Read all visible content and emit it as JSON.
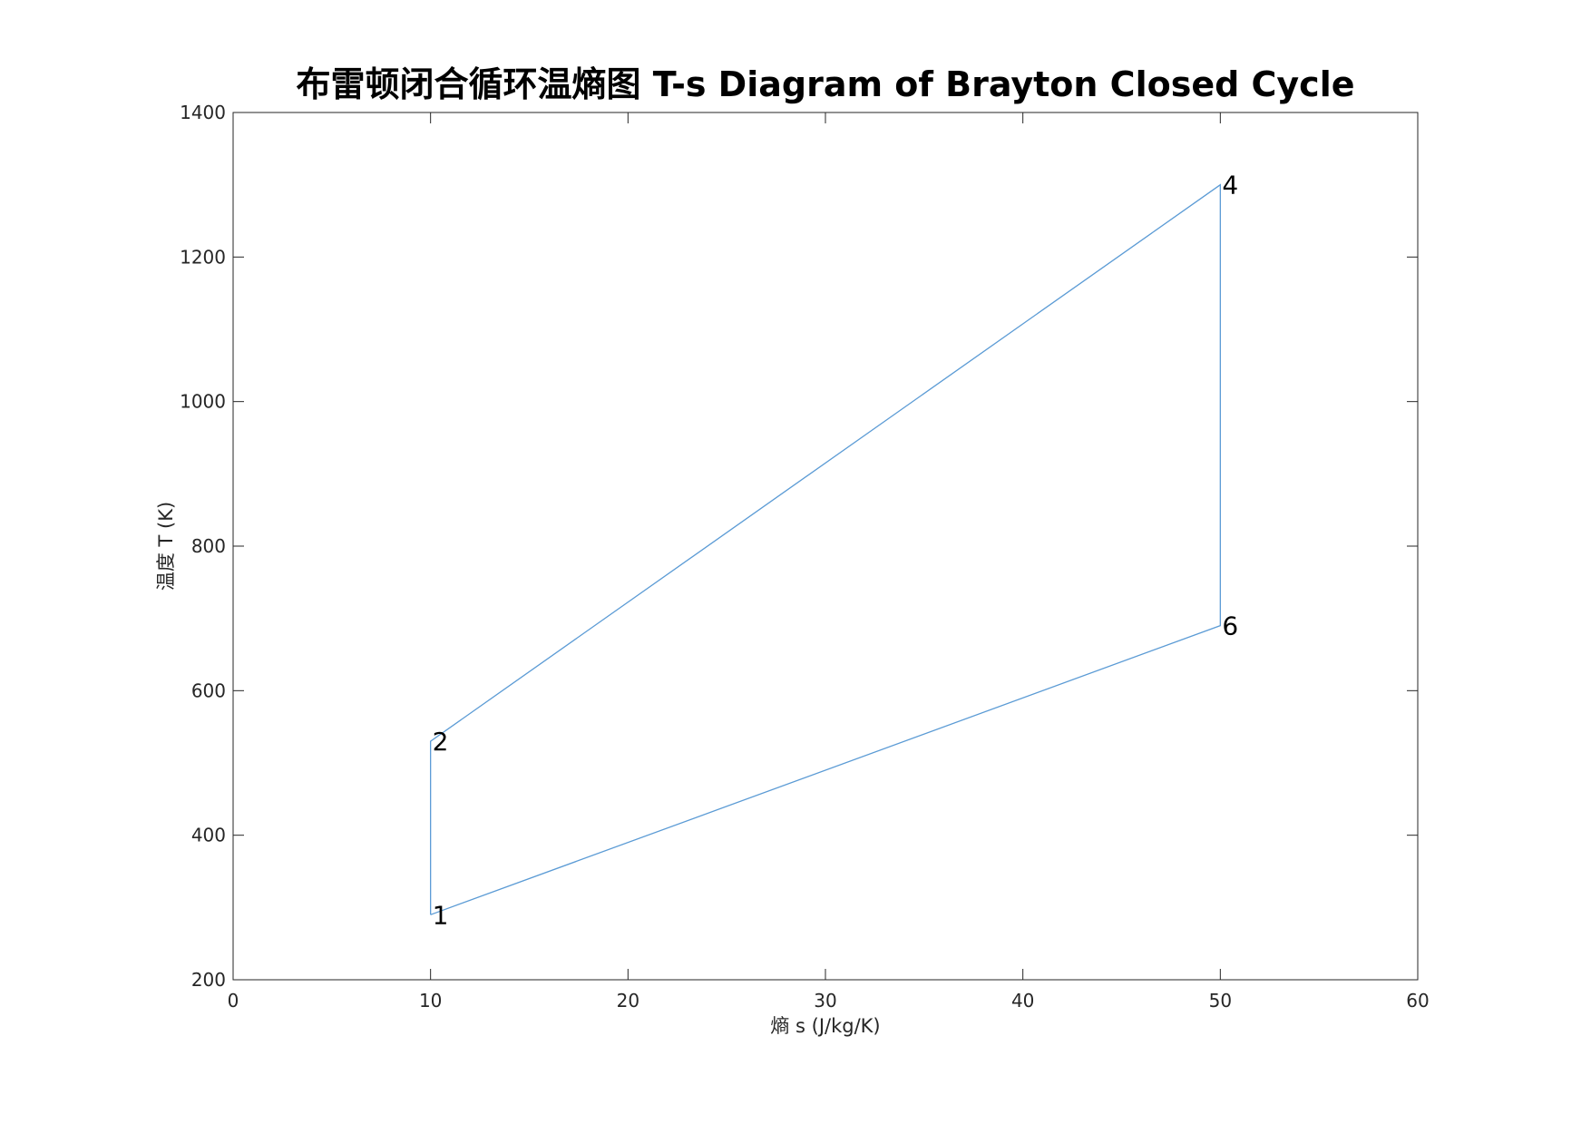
{
  "chart_data": {
    "type": "line",
    "title": "布雷顿闭合循环温熵图 T-s Diagram of Brayton Closed Cycle",
    "xlabel": "熵 s (J/kg/K)",
    "ylabel": "温度 T (K)",
    "xlim": [
      0,
      60
    ],
    "ylim": [
      200,
      1400
    ],
    "xticks": [
      0,
      10,
      20,
      30,
      40,
      50,
      60
    ],
    "yticks": [
      200,
      400,
      600,
      800,
      1000,
      1200,
      1400
    ],
    "grid": false,
    "legend": "none",
    "line_color": "#5b9bd5",
    "series": [
      {
        "x": [
          10,
          10,
          50,
          50,
          10
        ],
        "y": [
          290,
          530,
          1300,
          690,
          290
        ]
      }
    ],
    "annotations": [
      {
        "text": "1",
        "x": 10,
        "y": 290
      },
      {
        "text": "2",
        "x": 10,
        "y": 530
      },
      {
        "text": "4",
        "x": 50,
        "y": 1300
      },
      {
        "text": "6",
        "x": 50,
        "y": 690
      }
    ]
  }
}
